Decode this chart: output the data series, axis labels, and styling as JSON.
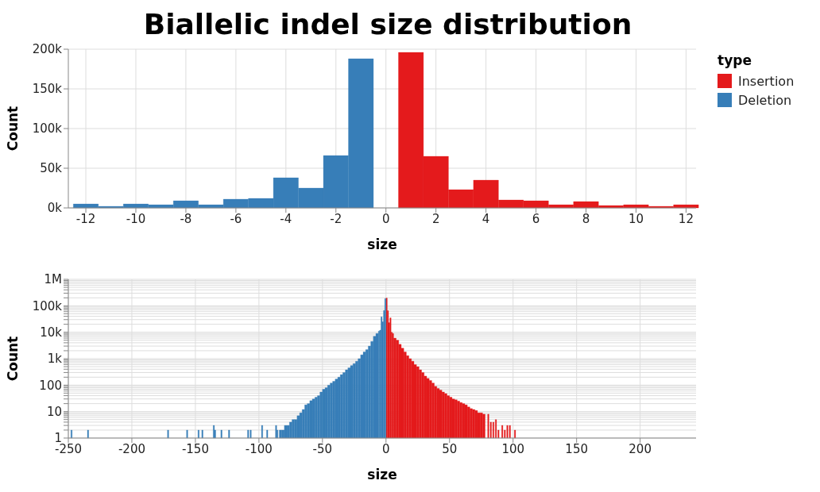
{
  "chart_data": [
    {
      "type": "histogram",
      "title": "Biallelic indel size distribution",
      "xlabel": "size",
      "ylabel": "Count",
      "legend_title": "type",
      "legend": "right",
      "grid": true,
      "xlim": [
        -12.7,
        12.4
      ],
      "xticks": [
        -12,
        -10,
        -8,
        -6,
        -4,
        -2,
        0,
        2,
        4,
        6,
        8,
        10,
        12
      ],
      "ylim": [
        0,
        200000
      ],
      "yticks": [
        {
          "value": 0,
          "label": "0k"
        },
        {
          "value": 50000,
          "label": "50k"
        },
        {
          "value": 100000,
          "label": "100k"
        },
        {
          "value": 150000,
          "label": "150k"
        },
        {
          "value": 200000,
          "label": "200k"
        }
      ],
      "bins": [
        -12.5,
        -11.5,
        -10.5,
        -9.5,
        -8.5,
        -7.5,
        -6.5,
        -5.5,
        -4.5,
        -3.5,
        -2.5,
        -1.5,
        -0.5,
        0.5,
        1.5,
        2.5,
        3.5,
        4.5,
        5.5,
        6.5,
        7.5,
        8.5,
        9.5,
        10.5,
        11.5,
        12.5
      ],
      "series": [
        {
          "name": "Insertion",
          "color": "#e41a1c",
          "values": [
            null,
            null,
            null,
            null,
            null,
            null,
            null,
            null,
            null,
            null,
            null,
            null,
            null,
            196000,
            65000,
            23000,
            35000,
            10000,
            9000,
            4000,
            8000,
            3000,
            4000,
            2000,
            4000
          ]
        },
        {
          "name": "Deletion",
          "color": "#377eb8",
          "values": [
            5000,
            2000,
            5000,
            4000,
            9000,
            4000,
            11000,
            12000,
            38000,
            25000,
            66000,
            188000,
            null,
            null,
            null,
            null,
            null,
            null,
            null,
            null,
            null,
            null,
            null,
            null,
            null
          ]
        }
      ]
    },
    {
      "type": "histogram",
      "xlabel": "size",
      "ylabel": "Count",
      "grid": true,
      "log": "y",
      "xlim": [
        -250,
        244
      ],
      "xticks": [
        -250,
        -200,
        -150,
        -100,
        -50,
        0,
        50,
        100,
        150,
        200
      ],
      "ylim": [
        1,
        1000000
      ],
      "yticks": [
        1,
        {
          "value": 2,
          "label": null
        },
        {
          "value": 3,
          "label": null
        },
        {
          "value": 4,
          "label": null
        },
        {
          "value": 5,
          "label": null
        },
        {
          "value": 6,
          "label": null
        },
        {
          "value": 7,
          "label": null
        },
        {
          "value": 8,
          "label": null
        },
        {
          "value": 9,
          "label": null
        },
        10,
        {
          "value": 20,
          "label": null
        },
        {
          "value": 30,
          "label": null
        },
        {
          "value": 40,
          "label": null
        },
        {
          "value": 50,
          "label": null
        },
        {
          "value": 60,
          "label": null
        },
        {
          "value": 70,
          "label": null
        },
        {
          "value": 80,
          "label": null
        },
        {
          "value": 90,
          "label": null
        },
        100,
        {
          "value": 200,
          "label": null
        },
        {
          "value": 300,
          "label": null
        },
        {
          "value": 400,
          "label": null
        },
        {
          "value": 500,
          "label": null
        },
        {
          "value": 600,
          "label": null
        },
        {
          "value": 700,
          "label": null
        },
        {
          "value": 800,
          "label": null
        },
        {
          "value": 900,
          "label": null
        },
        {
          "value": 1000,
          "label": "1k"
        },
        {
          "value": 2000,
          "label": null
        },
        {
          "value": 3000,
          "label": null
        },
        {
          "value": 4000,
          "label": null
        },
        {
          "value": 5000,
          "label": null
        },
        {
          "value": 6000,
          "label": null
        },
        {
          "value": 7000,
          "label": null
        },
        {
          "value": 8000,
          "label": null
        },
        {
          "value": 9000,
          "label": null
        },
        {
          "value": 10000,
          "label": "10k"
        },
        {
          "value": 20000,
          "label": null
        },
        {
          "value": 30000,
          "label": null
        },
        {
          "value": 40000,
          "label": null
        },
        {
          "value": 50000,
          "label": null
        },
        {
          "value": 60000,
          "label": null
        },
        {
          "value": 70000,
          "label": null
        },
        {
          "value": 80000,
          "label": null
        },
        {
          "value": 90000,
          "label": null
        },
        {
          "value": 100000,
          "label": "100k"
        },
        {
          "value": 200000,
          "label": null
        },
        {
          "value": 300000,
          "label": null
        },
        {
          "value": 400000,
          "label": null
        },
        {
          "value": 500000,
          "label": null
        },
        {
          "value": 600000,
          "label": null
        },
        {
          "value": 700000,
          "label": null
        },
        {
          "value": 800000,
          "label": null
        },
        {
          "value": 900000,
          "label": null
        },
        {
          "value": 1000000,
          "label": "1M"
        }
      ],
      "bins": [
        -248,
        -247,
        -235,
        -234,
        -172,
        -171,
        -157,
        -156,
        -148,
        -147,
        -145,
        -144,
        -136,
        -135,
        -134,
        -130,
        -129,
        -124,
        -123,
        -109,
        -108,
        -107,
        -106,
        -98,
        -97,
        -94,
        -93,
        -87,
        -86,
        -85,
        -84,
        -82,
        -80,
        -78,
        -76,
        -74,
        -72,
        -70,
        -68,
        -66,
        -64,
        -62,
        -60,
        -58,
        -56,
        -54,
        -52,
        -50,
        -48,
        -46,
        -44,
        -42,
        -40,
        -38,
        -36,
        -34,
        -32,
        -30,
        -28,
        -26,
        -24,
        -22,
        -20,
        -18,
        -16,
        -14,
        -12,
        -10,
        -8,
        -6,
        -5,
        -4,
        -3,
        -2,
        -1,
        0,
        1,
        2,
        3,
        4,
        5,
        6,
        8,
        10,
        12,
        14,
        16,
        18,
        20,
        22,
        24,
        26,
        28,
        30,
        32,
        34,
        36,
        38,
        40,
        42,
        44,
        46,
        48,
        50,
        52,
        54,
        56,
        58,
        60,
        62,
        64,
        66,
        68,
        70,
        72,
        74,
        76,
        78,
        80,
        81,
        82,
        83,
        84,
        85,
        86,
        87,
        88,
        89,
        91,
        92,
        93,
        94,
        95,
        96,
        97,
        98,
        101,
        102
      ],
      "series": [
        {
          "color": "#e41a1c",
          "values": [
            null,
            null,
            null,
            null,
            null,
            null,
            null,
            null,
            null,
            null,
            null,
            null,
            null,
            null,
            null,
            null,
            null,
            null,
            null,
            null,
            null,
            null,
            null,
            null,
            null,
            null,
            null,
            null,
            null,
            null,
            null,
            null,
            null,
            null,
            null,
            null,
            null,
            null,
            null,
            null,
            null,
            null,
            null,
            null,
            null,
            null,
            null,
            null,
            null,
            null,
            null,
            null,
            null,
            null,
            null,
            null,
            null,
            null,
            null,
            null,
            null,
            null,
            null,
            null,
            null,
            null,
            null,
            null,
            null,
            null,
            null,
            null,
            null,
            null,
            null,
            196000,
            65000,
            23000,
            35000,
            10000,
            9000,
            6000,
            5000,
            3500,
            2500,
            1800,
            1300,
            1000,
            800,
            600,
            500,
            380,
            300,
            220,
            180,
            150,
            120,
            90,
            75,
            65,
            55,
            48,
            40,
            35,
            30,
            28,
            25,
            22,
            20,
            18,
            15,
            13,
            12,
            11,
            9,
            9,
            8,
            null,
            8,
            null,
            4,
            null,
            4,
            null,
            5,
            null,
            2,
            null,
            3,
            null,
            2,
            null,
            3,
            null,
            3,
            null,
            2
          ]
        },
        {
          "color": "#377eb8",
          "values": [
            2,
            null,
            2,
            null,
            2,
            null,
            2,
            null,
            2,
            null,
            2,
            null,
            3,
            2,
            null,
            2,
            null,
            2,
            null,
            2,
            null,
            2,
            null,
            3,
            null,
            2,
            null,
            3,
            2,
            null,
            2,
            2,
            3,
            3,
            4,
            5,
            5,
            7,
            9,
            12,
            18,
            20,
            26,
            30,
            35,
            40,
            55,
            70,
            80,
            100,
            120,
            140,
            170,
            200,
            250,
            300,
            380,
            450,
            550,
            650,
            800,
            1000,
            1400,
            1800,
            2200,
            3000,
            4500,
            7000,
            9000,
            11000,
            12000,
            38000,
            25000,
            66000,
            187000,
            null,
            null,
            null,
            null,
            null,
            null,
            null,
            null,
            null,
            null,
            null,
            null,
            null,
            null,
            null,
            null,
            null,
            null,
            null,
            null,
            null,
            null,
            null,
            null,
            null,
            null,
            null,
            null,
            null,
            null,
            null,
            null,
            null,
            null,
            null,
            null,
            null,
            null,
            null,
            null,
            null,
            null,
            null,
            null,
            null,
            null,
            null,
            null,
            null,
            null,
            null,
            null,
            null,
            null,
            null,
            null,
            null,
            null,
            null,
            null,
            null,
            null
          ]
        }
      ]
    }
  ]
}
